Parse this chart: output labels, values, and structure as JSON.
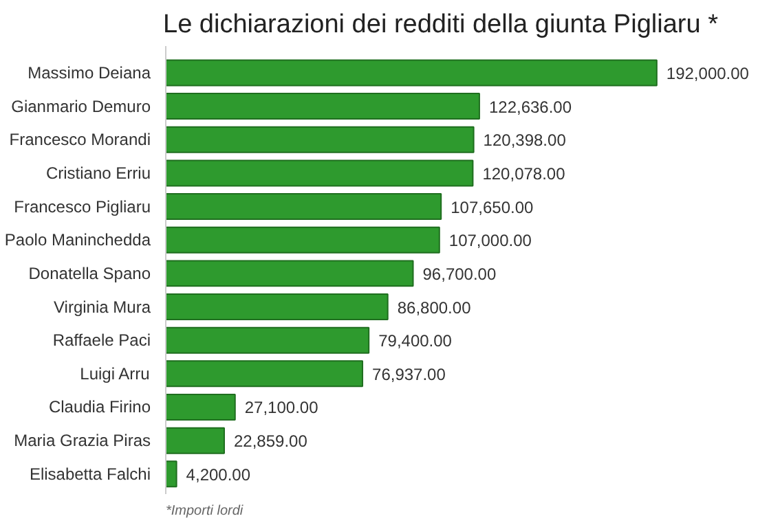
{
  "chart_data": {
    "type": "bar",
    "orientation": "horizontal",
    "title": "Le dichiarazioni dei redditi della giunta Pigliaru *",
    "categories": [
      "Massimo Deiana",
      "Gianmario Demuro",
      "Francesco Morandi",
      "Cristiano Erriu",
      "Francesco Pigliaru",
      "Paolo Maninchedda",
      "Donatella Spano",
      "Virginia Mura",
      "Raffaele Paci",
      "Luigi Arru",
      "Claudia Firino",
      "Maria Grazia Piras",
      "Elisabetta Falchi"
    ],
    "values": [
      192000,
      122636,
      120398,
      120078,
      107650,
      107000,
      96700,
      86800,
      79400,
      76937,
      27100,
      22859,
      4200
    ],
    "value_labels": [
      "192,000.00",
      "122,636.00",
      "120,398.00",
      "120,078.00",
      "107,650.00",
      "107,000.00",
      "96,700.00",
      "86,800.00",
      "79,400.00",
      "76,937.00",
      "27,100.00",
      "22,859.00",
      "4,200.00"
    ],
    "color": "#2e9a2e",
    "grid": false,
    "annotations": [
      "*Importi lordi"
    ]
  }
}
